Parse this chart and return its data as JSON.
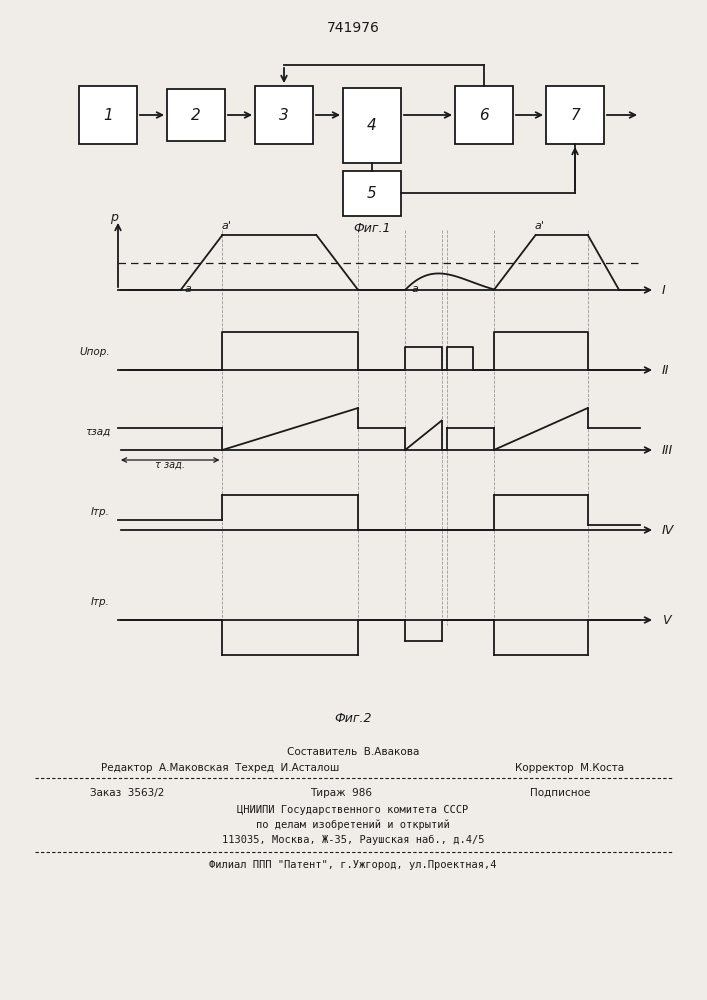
{
  "title": "741976",
  "fig1_label": "Фиг.1",
  "fig2_label": "Фиг.2",
  "block_labels": [
    "1",
    "2",
    "3",
    "4",
    "5",
    "6",
    "7"
  ],
  "signal_labels": [
    "I",
    "II",
    "III",
    "IV",
    "V"
  ],
  "footer_lines": [
    "Составитель  В.Авакова",
    "Редактор  А.Маковская  Техред  И.Асталош",
    "Корректор  М.Коста",
    "Заказ  3563/2",
    "Тираж  986",
    "Подписное",
    "ЦНИИПИ Государственного комитета СССР",
    "по делам изобретений и открытий",
    "113035, Москва, Ж-35, Раушская наб., д.4/5",
    "Филиал ППП \"Патент\", г.Ужгород, ул.Проектная,4"
  ],
  "bg_color": "#f0ede8",
  "line_color": "#1a1a1a"
}
